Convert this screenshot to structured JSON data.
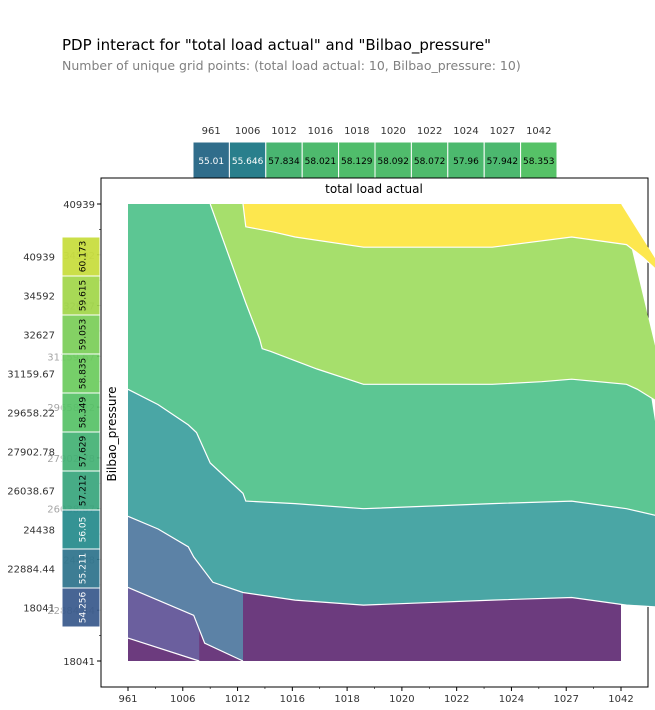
{
  "title": "PDP interact for \"total load actual\" and \"Bilbao_pressure\"",
  "subtitle": "Number of unique grid points: (total load actual: 10, Bilbao_pressure: 10)",
  "chart_data": [
    {
      "type": "heatmap",
      "name": "total load actual marginal PDP",
      "categories": [
        "961",
        "1006",
        "1012",
        "1016",
        "1018",
        "1020",
        "1022",
        "1024",
        "1027",
        "1042"
      ],
      "values": [
        55.01,
        55.646,
        57.834,
        58.021,
        58.129,
        58.092,
        58.072,
        57.96,
        57.942,
        58.353
      ],
      "value_labels": [
        "55.01",
        "55.646",
        "57.834",
        "58.021",
        "58.129",
        "58.092",
        "58.072",
        "57.96",
        "57.942",
        "58.353"
      ]
    },
    {
      "type": "heatmap",
      "name": "Bilbao_pressure marginal PDP",
      "categories": [
        "18041",
        "22884.44",
        "24438",
        "26038.67",
        "27902.78",
        "29658.22",
        "31159.67",
        "32627",
        "34592",
        "40939"
      ],
      "values": [
        54.256,
        55.211,
        56.05,
        57.212,
        57.629,
        58.349,
        58.835,
        59.053,
        59.615,
        60.173
      ],
      "value_labels": [
        "54.256",
        "55.211",
        "56.05",
        "57.212",
        "57.629",
        "58.349",
        "58.835",
        "59.053",
        "59.615",
        "60.173"
      ]
    },
    {
      "type": "contour",
      "xlabel": "total load actual",
      "ylabel": "Bilbao_pressure",
      "x_ticks": [
        "961",
        "1006",
        "1012",
        "1016",
        "1018",
        "1020",
        "1022",
        "1024",
        "1027",
        "1042"
      ],
      "y_ticks": [
        "18041",
        "22884.44",
        "24438",
        "26038.67",
        "27902.78",
        "29658.22",
        "31159.67",
        "32627",
        "34592",
        "40939"
      ],
      "x_grid_index": [
        0,
        1,
        2,
        3,
        4,
        5,
        6,
        7,
        8,
        9
      ],
      "y_grid_index": [
        0,
        1,
        2,
        3,
        4,
        5,
        6,
        7,
        8,
        9
      ],
      "levels": [
        49,
        51,
        53,
        55,
        57,
        59,
        61
      ],
      "colors": [
        "#6c3b7e",
        "#6b5f9e",
        "#5c82a6",
        "#4aa6a5",
        "#5cc693",
        "#a6df6c",
        "#fde74e"
      ],
      "boundaries": [
        {
          "level": 51,
          "points": [
            [
              0,
              0.45
            ],
            [
              1.3,
              0
            ]
          ]
        },
        {
          "level": 53,
          "points": [
            [
              0,
              1.45
            ],
            [
              1.2,
              0.9
            ],
            [
              1.4,
              0.35
            ],
            [
              2.1,
              0
            ]
          ]
        },
        {
          "level": 55,
          "points": [
            [
              0,
              2.85
            ],
            [
              0.55,
              2.6
            ],
            [
              1.1,
              2.25
            ],
            [
              1.2,
              2.05
            ],
            [
              1.55,
              1.55
            ],
            [
              2.1,
              1.35
            ],
            [
              3.05,
              1.2
            ],
            [
              4.3,
              1.1
            ],
            [
              6.65,
              1.2
            ],
            [
              8.1,
              1.25
            ],
            [
              9.1,
              1.1
            ],
            [
              9.9,
              1.05
            ]
          ]
        },
        {
          "level": 57,
          "points": [
            [
              0,
              5.35
            ],
            [
              0.55,
              5.05
            ],
            [
              1.1,
              4.65
            ],
            [
              1.25,
              4.5
            ],
            [
              1.5,
              3.9
            ],
            [
              2.1,
              3.3
            ],
            [
              2.15,
              3.15
            ],
            [
              3.05,
              3.1
            ],
            [
              4.3,
              3.0
            ],
            [
              6.65,
              3.1
            ],
            [
              8.1,
              3.15
            ],
            [
              9.1,
              3.0
            ],
            [
              9.9,
              2.8
            ]
          ]
        },
        {
          "level": 59,
          "points": [
            [
              1.5,
              9.0
            ],
            [
              2.15,
              7.05
            ],
            [
              2.4,
              6.35
            ],
            [
              2.45,
              6.15
            ],
            [
              2.6,
              6.1
            ],
            [
              3.45,
              5.75
            ],
            [
              4.3,
              5.45
            ],
            [
              6.65,
              5.45
            ],
            [
              7.55,
              5.5
            ],
            [
              8.1,
              5.55
            ],
            [
              9.1,
              5.45
            ],
            [
              9.3,
              5.35
            ],
            [
              9.9,
              4.95
            ]
          ]
        },
        {
          "level": 61,
          "points": [
            [
              2.1,
              9.0
            ],
            [
              2.15,
              8.55
            ],
            [
              2.65,
              8.45
            ],
            [
              3.05,
              8.35
            ],
            [
              4.3,
              8.15
            ],
            [
              6.65,
              8.15
            ],
            [
              8.1,
              8.35
            ],
            [
              9.1,
              8.2
            ],
            [
              9.4,
              7.95
            ],
            [
              9.9,
              7.45
            ]
          ]
        }
      ]
    }
  ]
}
